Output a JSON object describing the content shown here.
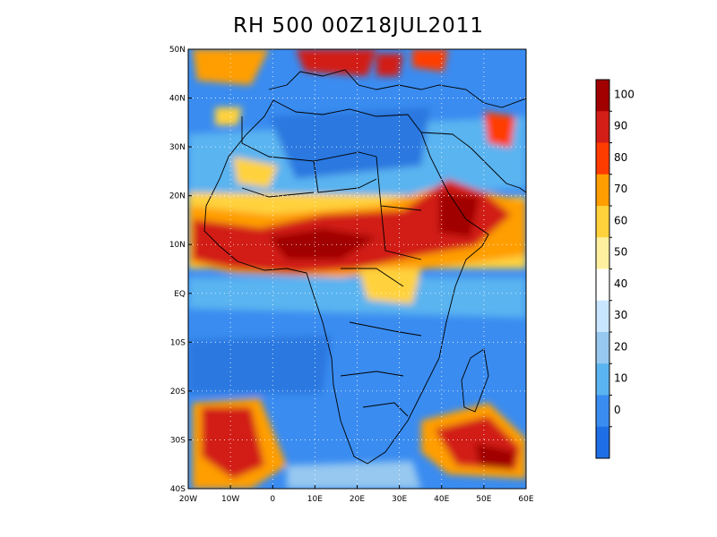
{
  "title": "RH 500 00Z18JUL2011",
  "map": {
    "lon_range": [
      -20,
      60
    ],
    "lat_range": [
      -40,
      50
    ],
    "lon_ticks": [
      {
        "value": -20,
        "label": "20W"
      },
      {
        "value": -10,
        "label": "10W"
      },
      {
        "value": 0,
        "label": "0"
      },
      {
        "value": 10,
        "label": "10E"
      },
      {
        "value": 20,
        "label": "20E"
      },
      {
        "value": 30,
        "label": "30E"
      },
      {
        "value": 40,
        "label": "40E"
      },
      {
        "value": 50,
        "label": "50E"
      },
      {
        "value": 60,
        "label": "60E"
      }
    ],
    "lat_ticks": [
      {
        "value": 50,
        "label": "50N"
      },
      {
        "value": 40,
        "label": "40N"
      },
      {
        "value": 30,
        "label": "30N"
      },
      {
        "value": 20,
        "label": "20N"
      },
      {
        "value": 10,
        "label": "10N"
      },
      {
        "value": 0,
        "label": "EQ"
      },
      {
        "value": -10,
        "label": "10S"
      },
      {
        "value": -20,
        "label": "20S"
      },
      {
        "value": -30,
        "label": "30S"
      },
      {
        "value": -40,
        "label": "40S"
      }
    ]
  },
  "colorbar": {
    "labels": [
      "100",
      "90",
      "80",
      "70",
      "60",
      "50",
      "40",
      "30",
      "20",
      "10",
      "0"
    ],
    "colors": [
      "#a00000",
      "#d21e16",
      "#ff3c00",
      "#ff9e00",
      "#ffd23c",
      "#fff0a0",
      "#ffffff",
      "#c8e6ff",
      "#96c8f0",
      "#5ab4f0",
      "#3a8cf0",
      "#1e6ee6"
    ]
  }
}
